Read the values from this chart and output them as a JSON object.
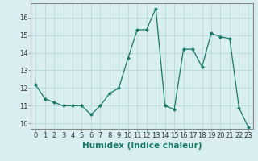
{
  "xlabel": "Humidex (Indice chaleur)",
  "x": [
    0,
    1,
    2,
    3,
    4,
    5,
    6,
    7,
    8,
    9,
    10,
    11,
    12,
    13,
    14,
    15,
    16,
    17,
    18,
    19,
    20,
    21,
    22,
    23
  ],
  "y": [
    12.2,
    11.4,
    11.2,
    11.0,
    11.0,
    11.0,
    10.5,
    11.0,
    11.7,
    12.0,
    13.7,
    15.3,
    15.3,
    16.5,
    11.0,
    10.8,
    14.2,
    14.2,
    13.2,
    15.1,
    14.9,
    14.8,
    10.9,
    9.8
  ],
  "line_color": "#1a7a6a",
  "marker": "D",
  "marker_size": 2.0,
  "bg_color": "#d8eef0",
  "grid_color": "#b8d8da",
  "ylim": [
    9.7,
    16.8
  ],
  "yticks": [
    10,
    11,
    12,
    13,
    14,
    15,
    16
  ],
  "xticks": [
    0,
    1,
    2,
    3,
    4,
    5,
    6,
    7,
    8,
    9,
    10,
    11,
    12,
    13,
    14,
    15,
    16,
    17,
    18,
    19,
    20,
    21,
    22,
    23
  ],
  "tick_fontsize": 6,
  "label_fontsize": 7.5,
  "spine_color": "#888888",
  "tick_color": "#333333"
}
